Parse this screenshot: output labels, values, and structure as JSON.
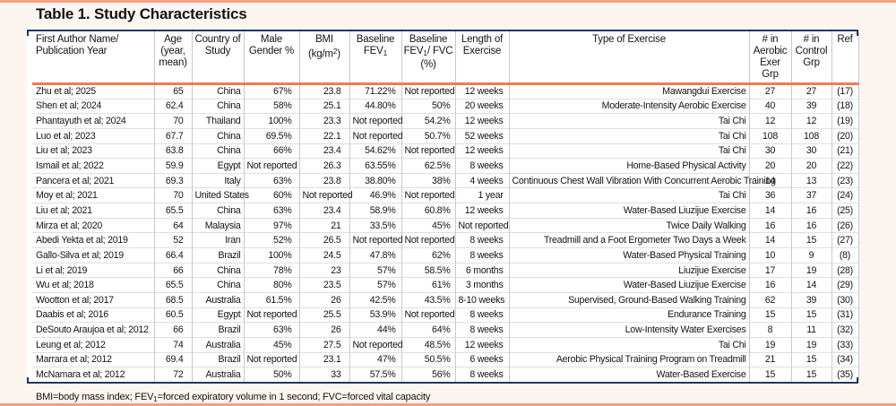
{
  "page": {
    "title": "Table 1. Study Characteristics"
  },
  "colors": {
    "page_band_salmon": "#f2a183",
    "header_underline_orange": "#ed7d52",
    "table_rule_navy": "#1f3864",
    "grid_line_gray": "#c9c9c9",
    "row_line_gray": "#e0e0e0",
    "page_background": "#fcf5f0"
  },
  "table": {
    "headers": [
      [
        {
          "t": "First Author Name/ Publication Year"
        }
      ],
      [
        {
          "t": "Age (year, mean)"
        }
      ],
      [
        {
          "t": "Country of Study"
        }
      ],
      [
        {
          "t": "Male Gender %"
        }
      ],
      [
        {
          "t": "BMI (kg/m"
        },
        {
          "t": "2",
          "v": "sup"
        },
        {
          "t": ")"
        }
      ],
      [
        {
          "t": "Baseline FEV"
        },
        {
          "t": "1",
          "v": "sub"
        }
      ],
      [
        {
          "t": "Baseline FEV"
        },
        {
          "t": "1",
          "v": "sub"
        },
        {
          "t": "/ FVC (%)"
        }
      ],
      [
        {
          "t": "Length of Exercise"
        }
      ],
      [
        {
          "t": "Type of Exercise"
        }
      ],
      [
        {
          "t": "# in Aerobic Exer Grp"
        }
      ],
      [
        {
          "t": "# in Control Grp"
        }
      ],
      [
        {
          "t": "Ref"
        }
      ]
    ],
    "rows": [
      [
        "Zhu et al; 2025",
        "65",
        "China",
        "67%",
        "23.8",
        "71.22%",
        "Not reported",
        "12 weeks",
        "Mawangdui Exercise",
        "27",
        "27",
        "(17)"
      ],
      [
        "Shen et al; 2024",
        "62.4",
        "China",
        "58%",
        "25.1",
        "44.80%",
        "50%",
        "20 weeks",
        "Moderate-Intensity Aerobic Exercise",
        "40",
        "39",
        "(18)"
      ],
      [
        "Phantayuth et al; 2024",
        "70",
        "Thailand",
        "100%",
        "23.3",
        "Not reported",
        "54.2%",
        "12 weeks",
        "Tai Chi",
        "12",
        "12",
        "(19)"
      ],
      [
        "Luo et al; 2023",
        "67.7",
        "China",
        "69.5%",
        "22.1",
        "Not reported",
        "50.7%",
        "52 weeks",
        "Tai Chi",
        "108",
        "108",
        "(20)"
      ],
      [
        "Liu et al; 2023",
        "63.8",
        "China",
        "66%",
        "23.4",
        "54.62%",
        "Not reported",
        "12 weeks",
        "Tai Chi",
        "30",
        "30",
        "(21)"
      ],
      [
        "Ismail et al; 2022",
        "59.9",
        "Egypt",
        "Not reported",
        "26.3",
        "63.55%",
        "62.5%",
        "8 weeks",
        "Home-Based Physical Activity",
        "20",
        "20",
        "(22)"
      ],
      [
        "Pancera et al; 2021",
        "69.3",
        "Italy",
        "63%",
        "23.8",
        "38.80%",
        "38%",
        "4 weeks",
        "Continuous Chest Wall Vibration With Concurrent Aerobic Training",
        "14",
        "13",
        "(23)"
      ],
      [
        "Moy et al; 2021",
        "70",
        "United States",
        "60%",
        "Not reported",
        "46.9%",
        "Not reported",
        "1 year",
        "Tai Chi",
        "36",
        "37",
        "(24)"
      ],
      [
        "Liu et al; 2021",
        "65.5",
        "China",
        "63%",
        "23.4",
        "58.9%",
        "60.8%",
        "12 weeks",
        "Water-Based Liuzijue Exercise",
        "14",
        "16",
        "(25)"
      ],
      [
        "Mirza et al; 2020",
        "64",
        "Malaysia",
        "97%",
        "21",
        "33.5%",
        "45%",
        "Not reported",
        "Twice Daily Walking",
        "16",
        "16",
        "(26)"
      ],
      [
        "Abedi Yekta et al; 2019",
        "52",
        "Iran",
        "52%",
        "26.5",
        "Not reported",
        "Not reported",
        "8 weeks",
        "Treadmill and a Foot Ergometer Two Days a Week",
        "14",
        "15",
        "(27)"
      ],
      [
        "Gallo-Silva et al; 2019",
        "66.4",
        "Brazil",
        "100%",
        "24.5",
        "47.8%",
        "62%",
        "8 weeks",
        "Water-Based Physical Training",
        "10",
        "9",
        "(8)"
      ],
      [
        "Li et al; 2019",
        "66",
        "China",
        "78%",
        "23",
        "57%",
        "58.5%",
        "6 months",
        "Liuzijue Exercise",
        "17",
        "19",
        "(28)"
      ],
      [
        "Wu et al; 2018",
        "65.5",
        "China",
        "80%",
        "23.5",
        "57%",
        "61%",
        "3 months",
        "Water-Based Liuzijue Exercise",
        "16",
        "14",
        "(29)"
      ],
      [
        "Wootton et al; 2017",
        "68.5",
        "Australia",
        "61.5%",
        "26",
        "42.5%",
        "43.5%",
        "8-10 weeks",
        "Supervised, Ground-Based Walking Training",
        "62",
        "39",
        "(30)"
      ],
      [
        "Daabis et al; 2016",
        "60.5",
        "Egypt",
        "Not reported",
        "25.5",
        "53.9%",
        "Not reported",
        "8 weeks",
        "Endurance Training",
        "15",
        "15",
        "(31)"
      ],
      [
        "DeSouto Araujoa et al; 2012",
        "66",
        "Brazil",
        "63%",
        "26",
        "44%",
        "64%",
        "8 weeks",
        "Low-Intensity Water Exercises",
        "8",
        "11",
        "(32)"
      ],
      [
        "Leung et al; 2012",
        "74",
        "Australia",
        "45%",
        "27.5",
        "Not reported",
        "48.5%",
        "12 weeks",
        "Tai Chi",
        "19",
        "19",
        "(33)"
      ],
      [
        "Marrara et al; 2012",
        "69.4",
        "Brazil",
        "Not reported",
        "23.1",
        "47%",
        "50.5%",
        "6 weeks",
        "Aerobic Physical Training Program on Treadmill",
        "21",
        "15",
        "(34)"
      ],
      [
        "McNamara et al; 2012",
        "72",
        "Australia",
        "50%",
        "33",
        "57.5%",
        "56%",
        "8 weeks",
        "Water-Based Exercise",
        "15",
        "15",
        "(35)"
      ]
    ],
    "footnote": [
      {
        "t": "BMI=body mass index; FEV"
      },
      {
        "t": "1",
        "v": "sub"
      },
      {
        "t": "=forced expiratory volume in 1 second; FVC=forced vital capacity"
      }
    ]
  }
}
